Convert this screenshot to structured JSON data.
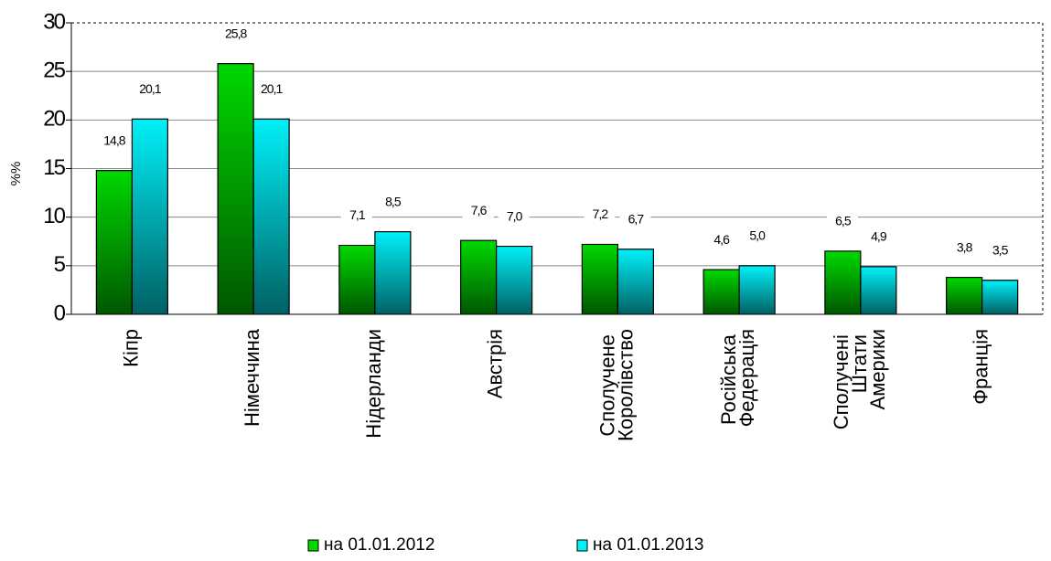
{
  "chart_data": {
    "type": "bar",
    "y_label": "%%",
    "categories": [
      "Кіпр",
      "Німеччина",
      "Нідерланди",
      "Австрія",
      "Сполучене Королівство",
      "Російська Федерація",
      "Сполучені Штати Америки",
      "Франція"
    ],
    "series": [
      {
        "name": "на 01.01.2012",
        "color": "#00d800",
        "values": [
          14.8,
          25.8,
          7.1,
          7.6,
          7.2,
          4.6,
          6.5,
          3.8
        ],
        "value_labels": [
          "14,8",
          "25,8",
          "7,1",
          "7,6",
          "7,2",
          "4,6",
          "6,5",
          "3,8"
        ]
      },
      {
        "name": "на 01.01.2013",
        "color": "#00f0f8",
        "values": [
          20.1,
          20.1,
          8.5,
          7.0,
          6.7,
          5.0,
          4.9,
          3.5
        ],
        "value_labels": [
          "20,1",
          "20,1",
          "8,5",
          "7,0",
          "6,7",
          "5,0",
          "4,9",
          "3,5"
        ]
      }
    ],
    "ylim": [
      0,
      30
    ],
    "yticks": [
      0,
      5,
      10,
      15,
      20,
      25,
      30
    ],
    "grid": true,
    "legend": "bottom"
  }
}
